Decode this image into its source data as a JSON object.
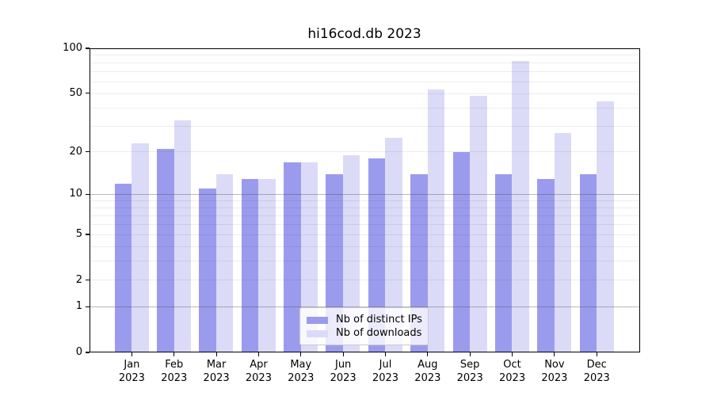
{
  "title": "hi16cod.db 2023",
  "chart_data": {
    "type": "bar",
    "title": "hi16cod.db 2023",
    "categories": [
      "Jan 2023",
      "Feb 2023",
      "Mar 2023",
      "Apr 2023",
      "May 2023",
      "Jun 2023",
      "Jul 2023",
      "Aug 2023",
      "Sep 2023",
      "Oct 2023",
      "Nov 2023",
      "Dec 2023"
    ],
    "months": [
      "Jan",
      "Feb",
      "Mar",
      "Apr",
      "May",
      "Jun",
      "Jul",
      "Aug",
      "Sep",
      "Oct",
      "Nov",
      "Dec"
    ],
    "year": "2023",
    "series": [
      {
        "name": "Nb of distinct IPs",
        "color": "#9b9bee",
        "values": [
          12,
          21,
          11,
          13,
          17,
          14,
          18,
          14,
          20,
          14,
          13,
          14
        ]
      },
      {
        "name": "Nb of downloads",
        "color": "#dbdbf8",
        "values": [
          23,
          33,
          14,
          13,
          17,
          19,
          25,
          53,
          48,
          83,
          27,
          44
        ]
      }
    ],
    "y_scale": "log10(value+1)",
    "ylim": [
      0,
      100
    ],
    "y_ticks": [
      0,
      1,
      2,
      5,
      10,
      20,
      50,
      100
    ],
    "major_gridlines": [
      1,
      10
    ],
    "minor_gridlines": [
      2,
      3,
      4,
      5,
      6,
      7,
      8,
      9,
      20,
      30,
      40,
      50,
      60,
      70,
      80,
      90
    ],
    "grid": "horizontal",
    "legend_position": "lower center"
  }
}
